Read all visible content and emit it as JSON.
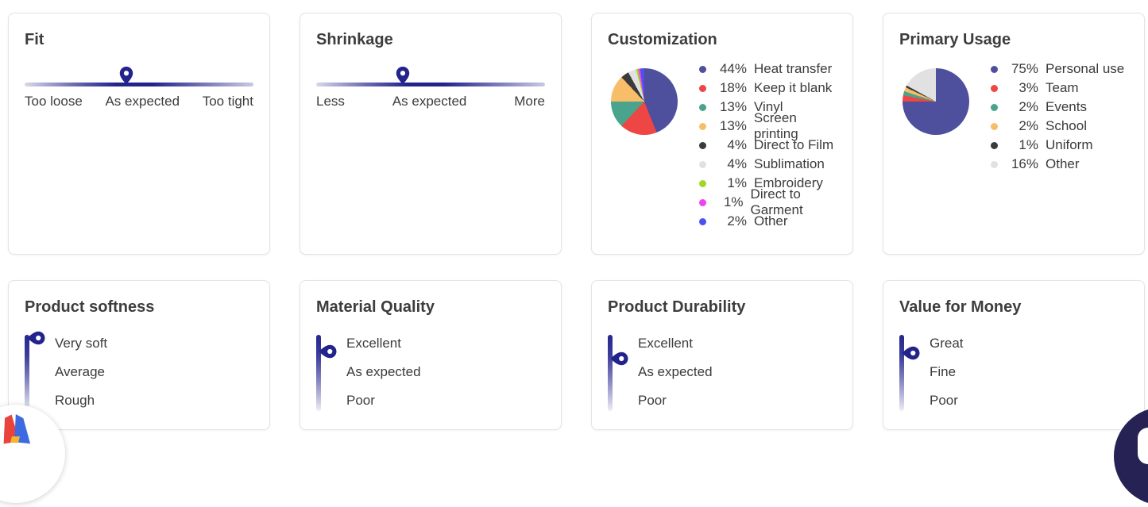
{
  "accent_color": "#23238c",
  "cards": [
    {
      "id": "fit",
      "kind": "h-slider",
      "title": "Fit",
      "labels": [
        "Too loose",
        "As expected",
        "Too tight"
      ],
      "marker_pct": 44.5
    },
    {
      "id": "shrinkage",
      "kind": "h-slider",
      "title": "Shrinkage",
      "labels": [
        "Less",
        "As expected",
        "More"
      ],
      "marker_pct": 38
    },
    {
      "id": "customization",
      "kind": "pie",
      "title": "Customization",
      "chart_index": 0
    },
    {
      "id": "primary-usage",
      "kind": "pie",
      "title": "Primary Usage",
      "chart_index": 1
    },
    {
      "id": "product-softness",
      "kind": "v-slider",
      "title": "Product softness",
      "labels": [
        "Very soft",
        "Average",
        "Rough"
      ],
      "marker_pct": 4
    },
    {
      "id": "material-quality",
      "kind": "v-slider",
      "title": "Material Quality",
      "labels": [
        "Excellent",
        "As expected",
        "Poor"
      ],
      "marker_pct": 22
    },
    {
      "id": "product-durability",
      "kind": "v-slider",
      "title": "Product Durability",
      "labels": [
        "Excellent",
        "As expected",
        "Poor"
      ],
      "marker_pct": 31
    },
    {
      "id": "value-for-money",
      "kind": "v-slider",
      "title": "Value for Money",
      "labels": [
        "Great",
        "Fine",
        "Poor"
      ],
      "marker_pct": 24
    }
  ],
  "chart_data": [
    {
      "type": "pie",
      "title": "Customization",
      "legend_position": "right",
      "slices": [
        {
          "label": "Heat transfer",
          "value": 44,
          "color": "#4e4f9d"
        },
        {
          "label": "Keep it blank",
          "value": 18,
          "color": "#ee4545"
        },
        {
          "label": "Vinyl",
          "value": 13,
          "color": "#4aa38c"
        },
        {
          "label": "Screen printing",
          "value": 13,
          "color": "#f8bd69"
        },
        {
          "label": "Direct to Film",
          "value": 4,
          "color": "#3b3b3b"
        },
        {
          "label": "Sublimation",
          "value": 4,
          "color": "#e1e1e1"
        },
        {
          "label": "Embroidery",
          "value": 1,
          "color": "#a2d62c"
        },
        {
          "label": "Direct to Garment",
          "value": 1,
          "color": "#ee44ee"
        },
        {
          "label": "Other",
          "value": 2,
          "color": "#5050ee"
        }
      ]
    },
    {
      "type": "pie",
      "title": "Primary Usage",
      "legend_position": "right",
      "slices": [
        {
          "label": "Personal use",
          "value": 75,
          "color": "#4e4f9d"
        },
        {
          "label": "Team",
          "value": 3,
          "color": "#ee4545"
        },
        {
          "label": "Events",
          "value": 2,
          "color": "#4aa38c"
        },
        {
          "label": "School",
          "value": 2,
          "color": "#f8bd69"
        },
        {
          "label": "Uniform",
          "value": 1,
          "color": "#3b3b3b"
        },
        {
          "label": "Other",
          "value": 16,
          "color": "#e1e1e1"
        }
      ]
    }
  ],
  "widgets": {
    "brand_badge": {
      "colors": {
        "red": "#e8443c",
        "blue": "#3d6ae0",
        "yellow": "#f2b632"
      }
    },
    "chat_button": {
      "background": "#262253"
    }
  }
}
